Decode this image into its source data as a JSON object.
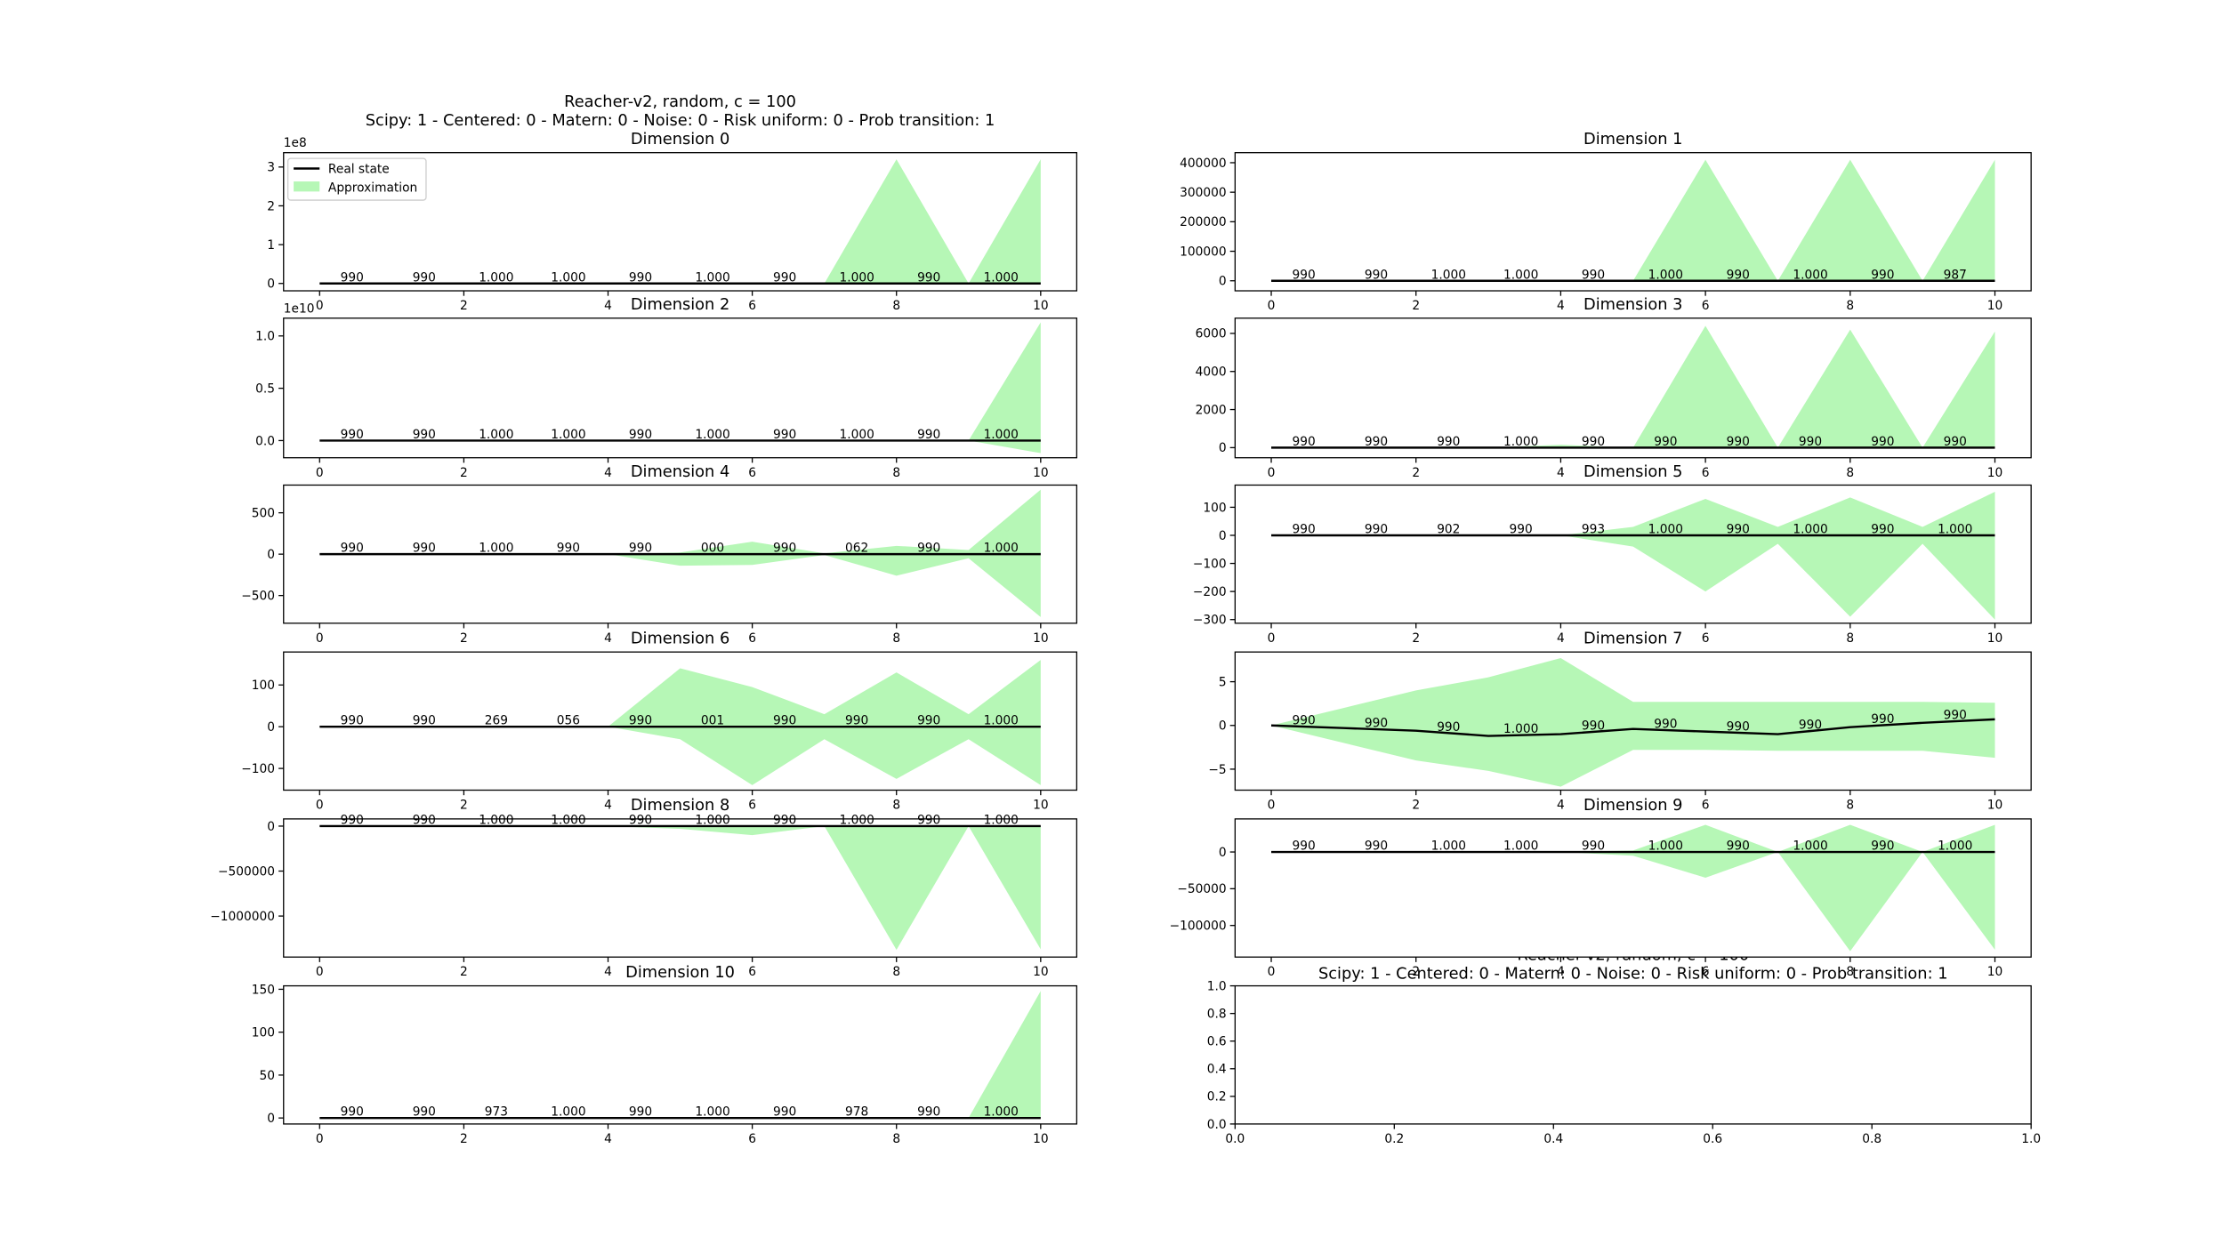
{
  "chart_data": [
    {
      "type": "band-line",
      "suptitle": [
        "Reacher-v2, random, c = 100",
        "Scipy: 1 - Centered: 0 - Matern: 0 - Noise: 0 - Risk uniform: 0 - Prob transition: 1"
      ],
      "title": "Dimension 0",
      "offset_label": "1e8",
      "legend": "upper left",
      "x": [
        0,
        1,
        2,
        3,
        4,
        5,
        6,
        7,
        8,
        9,
        10
      ],
      "xlim": [
        -0.5,
        10.5
      ],
      "xticks": [
        0,
        2,
        4,
        6,
        8,
        10
      ],
      "ylim": [
        -19000000,
        337000000
      ],
      "yticks": [
        0,
        {
          "value": 100000000,
          "label": "1"
        },
        {
          "value": 200000000,
          "label": "2"
        },
        {
          "value": 300000000,
          "label": "3"
        }
      ],
      "series": [
        {
          "name": "Real state",
          "color": "#000000",
          "values": [
            0,
            0,
            0,
            0,
            0,
            0,
            0,
            0,
            0,
            0,
            0
          ]
        },
        {
          "name": "Approximation",
          "color": "#b6f7b6",
          "lower": [
            0,
            0,
            0,
            0,
            0,
            0,
            0,
            0,
            0,
            0,
            0
          ],
          "upper": [
            0,
            0,
            0,
            0,
            0,
            0,
            0,
            0,
            320000000,
            0,
            320000000
          ]
        }
      ],
      "annotations": [
        "990",
        "990",
        "1.000",
        "1.000",
        "990",
        "1.000",
        "990",
        "1.000",
        "990",
        "1.000"
      ]
    },
    {
      "type": "band-line",
      "title": "Dimension 1",
      "x": [
        0,
        1,
        2,
        3,
        4,
        5,
        6,
        7,
        8,
        9,
        10
      ],
      "xlim": [
        -0.5,
        10.5
      ],
      "xticks": [
        0,
        2,
        4,
        6,
        8,
        10
      ],
      "ylim": [
        -34000,
        434000
      ],
      "yticks": [
        0,
        100000,
        200000,
        300000,
        400000
      ],
      "series": [
        {
          "color": "#000000",
          "values": [
            0,
            0,
            0,
            0,
            0,
            0,
            0,
            0,
            0,
            0,
            0
          ]
        },
        {
          "color": "#b6f7b6",
          "lower": [
            0,
            0,
            0,
            0,
            0,
            0,
            0,
            0,
            0,
            0,
            0
          ],
          "upper": [
            0,
            0,
            0,
            0,
            0,
            0,
            410000,
            0,
            410000,
            0,
            410000
          ]
        }
      ],
      "annotations": [
        "990",
        "990",
        "1.000",
        "1.000",
        "990",
        "1.000",
        "990",
        "1.000",
        "990",
        "987"
      ]
    },
    {
      "type": "band-line",
      "title": "Dimension 2",
      "offset_label": "1e10",
      "x": [
        0,
        1,
        2,
        3,
        4,
        5,
        6,
        7,
        8,
        9,
        10
      ],
      "xlim": [
        -0.5,
        10.5
      ],
      "xticks": [
        0,
        2,
        4,
        6,
        8,
        10
      ],
      "ylim": [
        -1640000000,
        11700000000
      ],
      "yticks": [
        {
          "value": 0,
          "label": "0.0"
        },
        {
          "value": 5000000000,
          "label": "0.5"
        },
        {
          "value": 10000000000,
          "label": "1.0"
        }
      ],
      "series": [
        {
          "color": "#000000",
          "values": [
            0,
            0,
            0,
            0,
            0,
            0,
            0,
            0,
            0,
            0,
            0
          ]
        },
        {
          "color": "#b6f7b6",
          "lower": [
            0,
            0,
            0,
            0,
            0,
            0,
            0,
            0,
            0,
            0,
            -1200000000
          ],
          "upper": [
            0,
            0,
            0,
            0,
            0,
            0,
            0,
            0,
            0,
            0,
            11300000000
          ]
        }
      ],
      "annotations": [
        "990",
        "990",
        "1.000",
        "1.000",
        "990",
        "1.000",
        "990",
        "1.000",
        "990",
        "1.000"
      ]
    },
    {
      "type": "band-line",
      "title": "Dimension 3",
      "x": [
        0,
        1,
        2,
        3,
        4,
        5,
        6,
        7,
        8,
        9,
        10
      ],
      "xlim": [
        -0.5,
        10.5
      ],
      "xticks": [
        0,
        2,
        4,
        6,
        8,
        10
      ],
      "ylim": [
        -530,
        6800
      ],
      "yticks": [
        0,
        2000,
        4000,
        6000
      ],
      "series": [
        {
          "color": "#000000",
          "values": [
            0,
            0,
            0,
            0,
            0,
            0,
            0,
            0,
            0,
            0,
            0
          ]
        },
        {
          "color": "#b6f7b6",
          "lower": [
            0,
            0,
            0,
            0,
            0,
            0,
            0,
            0,
            0,
            0,
            0
          ],
          "upper": [
            0,
            0,
            0,
            0,
            150,
            0,
            6400,
            0,
            6200,
            0,
            6100
          ]
        }
      ],
      "annotations": [
        "990",
        "990",
        "990",
        "1.000",
        "990",
        "990",
        "990",
        "990",
        "990",
        "990"
      ]
    },
    {
      "type": "band-line",
      "title": "Dimension 4",
      "x": [
        0,
        1,
        2,
        3,
        4,
        5,
        6,
        7,
        8,
        9,
        10
      ],
      "xlim": [
        -0.5,
        10.5
      ],
      "xticks": [
        0,
        2,
        4,
        6,
        8,
        10
      ],
      "ylim": [
        -835,
        835
      ],
      "yticks": [
        {
          "value": -500,
          "label": "−500"
        },
        0,
        500
      ],
      "series": [
        {
          "color": "#000000",
          "values": [
            0,
            0,
            0,
            0,
            0,
            0,
            0,
            0,
            0,
            0,
            0
          ]
        },
        {
          "color": "#b6f7b6",
          "lower": [
            0,
            0,
            0,
            0,
            0,
            -140,
            -130,
            -10,
            -260,
            -50,
            -760
          ],
          "upper": [
            0,
            0,
            0,
            0,
            0,
            20,
            150,
            10,
            100,
            50,
            780
          ]
        }
      ],
      "annotations": [
        "990",
        "990",
        "1.000",
        "990",
        "990",
        "000",
        "990",
        "062",
        "990",
        "1.000"
      ]
    },
    {
      "type": "band-line",
      "title": "Dimension 5",
      "x": [
        0,
        1,
        2,
        3,
        4,
        5,
        6,
        7,
        8,
        9,
        10
      ],
      "xlim": [
        -0.5,
        10.5
      ],
      "xticks": [
        0,
        2,
        4,
        6,
        8,
        10
      ],
      "ylim": [
        -313,
        179
      ],
      "yticks": [
        {
          "value": -300,
          "label": "−300"
        },
        {
          "value": -200,
          "label": "−200"
        },
        {
          "value": -100,
          "label": "−100"
        },
        0,
        100
      ],
      "series": [
        {
          "color": "#000000",
          "values": [
            0,
            0,
            0,
            0,
            0,
            0,
            0,
            0,
            0,
            0,
            0
          ]
        },
        {
          "color": "#b6f7b6",
          "lower": [
            0,
            0,
            0,
            0,
            0,
            -40,
            -200,
            -30,
            -290,
            -30,
            -300
          ],
          "upper": [
            0,
            0,
            0,
            0,
            0,
            30,
            130,
            30,
            135,
            30,
            155
          ]
        }
      ],
      "annotations": [
        "990",
        "990",
        "902",
        "990",
        "993",
        "1.000",
        "990",
        "1.000",
        "990",
        "1.000"
      ]
    },
    {
      "type": "band-line",
      "title": "Dimension 6",
      "x": [
        0,
        1,
        2,
        3,
        4,
        5,
        6,
        7,
        8,
        9,
        10
      ],
      "xlim": [
        -0.5,
        10.5
      ],
      "xticks": [
        0,
        2,
        4,
        6,
        8,
        10
      ],
      "ylim": [
        -152,
        179
      ],
      "yticks": [
        {
          "value": -100,
          "label": "−100"
        },
        0,
        100
      ],
      "series": [
        {
          "color": "#000000",
          "values": [
            0,
            0,
            0,
            0,
            0,
            0,
            0,
            0,
            0,
            0,
            0
          ]
        },
        {
          "color": "#b6f7b6",
          "lower": [
            0,
            0,
            0,
            0,
            0,
            -30,
            -140,
            -30,
            -125,
            -30,
            -140
          ],
          "upper": [
            0,
            0,
            0,
            0,
            0,
            140,
            95,
            30,
            130,
            30,
            160
          ]
        }
      ],
      "annotations": [
        "990",
        "990",
        "269",
        "056",
        "990",
        "001",
        "990",
        "990",
        "990",
        "1.000"
      ]
    },
    {
      "type": "band-line",
      "title": "Dimension 7",
      "x": [
        0,
        1,
        2,
        3,
        4,
        5,
        6,
        7,
        8,
        9,
        10
      ],
      "xlim": [
        -0.5,
        10.5
      ],
      "xticks": [
        0,
        2,
        4,
        6,
        8,
        10
      ],
      "ylim": [
        -7.4,
        8.4
      ],
      "yticks": [
        {
          "value": -5,
          "label": "−5"
        },
        0,
        5
      ],
      "series": [
        {
          "color": "#000000",
          "values": [
            0,
            -0.3,
            -0.6,
            -1.2,
            -1.0,
            -0.4,
            -0.7,
            -1.0,
            -0.2,
            0.3,
            0.7
          ]
        },
        {
          "color": "#b6f7b6",
          "lower": [
            0,
            -2,
            -4,
            -5.2,
            -7,
            -2.8,
            -2.8,
            -2.9,
            -2.9,
            -2.9,
            -3.7
          ],
          "upper": [
            0,
            2,
            4,
            5.5,
            7.7,
            2.7,
            2.7,
            2.7,
            2.7,
            2.7,
            2.6
          ]
        }
      ],
      "annotations": [
        "990",
        "990",
        "990",
        "1.000",
        "990",
        "990",
        "990",
        "990",
        "990",
        "990"
      ]
    },
    {
      "type": "band-line",
      "title": "Dimension 8",
      "x": [
        0,
        1,
        2,
        3,
        4,
        5,
        6,
        7,
        8,
        9,
        10
      ],
      "xlim": [
        -0.5,
        10.5
      ],
      "xticks": [
        0,
        2,
        4,
        6,
        8,
        10
      ],
      "ylim": [
        -1456000,
        80000
      ],
      "yticks": [
        {
          "value": -1000000,
          "label": "−1000000"
        },
        {
          "value": -500000,
          "label": "−500000"
        },
        0
      ],
      "series": [
        {
          "color": "#000000",
          "values": [
            0,
            0,
            0,
            0,
            0,
            0,
            0,
            0,
            0,
            0,
            0
          ]
        },
        {
          "color": "#b6f7b6",
          "lower": [
            0,
            0,
            0,
            0,
            0,
            -30000,
            -100000,
            0,
            -1376000,
            0,
            -1370000
          ],
          "upper": [
            0,
            0,
            0,
            0,
            0,
            0,
            0,
            0,
            0,
            0,
            0
          ]
        }
      ],
      "annotations": [
        "990",
        "990",
        "1.000",
        "1.000",
        "990",
        "1.000",
        "990",
        "1.000",
        "990",
        "1.000"
      ]
    },
    {
      "type": "band-line",
      "title": "Dimension 9",
      "x": [
        0,
        1,
        2,
        3,
        4,
        5,
        6,
        7,
        8,
        9,
        10
      ],
      "xlim": [
        -0.5,
        10.5
      ],
      "xticks": [
        0,
        2,
        4,
        6,
        8,
        10
      ],
      "ylim": [
        -143000,
        45000
      ],
      "yticks": [
        {
          "value": -100000,
          "label": "−100000"
        },
        {
          "value": -50000,
          "label": "−50000"
        },
        0
      ],
      "series": [
        {
          "color": "#000000",
          "values": [
            0,
            0,
            0,
            0,
            0,
            0,
            0,
            0,
            0,
            0,
            0
          ]
        },
        {
          "color": "#b6f7b6",
          "lower": [
            0,
            0,
            0,
            0,
            0,
            -5000,
            -35000,
            0,
            -135000,
            0,
            -133000
          ],
          "upper": [
            0,
            0,
            0,
            0,
            0,
            2000,
            37000,
            0,
            37000,
            0,
            37000
          ]
        }
      ],
      "annotations": [
        "990",
        "990",
        "1.000",
        "1.000",
        "990",
        "1.000",
        "990",
        "1.000",
        "990",
        "1.000"
      ]
    },
    {
      "type": "band-line",
      "title": "Dimension 10",
      "x": [
        0,
        1,
        2,
        3,
        4,
        5,
        6,
        7,
        8,
        9,
        10
      ],
      "xlim": [
        -0.5,
        10.5
      ],
      "xticks": [
        0,
        2,
        4,
        6,
        8,
        10
      ],
      "ylim": [
        -7,
        154
      ],
      "yticks": [
        0,
        50,
        100,
        150
      ],
      "series": [
        {
          "color": "#000000",
          "values": [
            0,
            0,
            0,
            0,
            0,
            0,
            0,
            0,
            0,
            0,
            0
          ]
        },
        {
          "color": "#b6f7b6",
          "lower": [
            0,
            0,
            0,
            0,
            0,
            0,
            0,
            0,
            0,
            0,
            0
          ],
          "upper": [
            0,
            0,
            0,
            0,
            0,
            0,
            0,
            0,
            0,
            0,
            148
          ]
        }
      ],
      "annotations": [
        "990",
        "990",
        "973",
        "1.000",
        "990",
        "1.000",
        "990",
        "978",
        "990",
        "1.000"
      ]
    },
    {
      "type": "empty",
      "title": [
        "Reacher-v2, random, c = 100",
        "Scipy: 1 - Centered: 0 - Matern: 0 - Noise: 0 - Risk uniform: 0 - Prob transition: 1"
      ],
      "xlim": [
        0,
        1
      ],
      "xticks": [
        {
          "value": 0,
          "label": "0.0"
        },
        {
          "value": 0.2,
          "label": "0.2"
        },
        {
          "value": 0.4,
          "label": "0.4"
        },
        {
          "value": 0.6,
          "label": "0.6"
        },
        {
          "value": 0.8,
          "label": "0.8"
        },
        {
          "value": 1,
          "label": "1.0"
        }
      ],
      "ylim": [
        0,
        1
      ],
      "yticks": [
        {
          "value": 0,
          "label": "0.0"
        },
        {
          "value": 0.2,
          "label": "0.2"
        },
        {
          "value": 0.4,
          "label": "0.4"
        },
        {
          "value": 0.6,
          "label": "0.6"
        },
        {
          "value": 0.8,
          "label": "0.8"
        },
        {
          "value": 1,
          "label": "1.0"
        }
      ]
    }
  ]
}
